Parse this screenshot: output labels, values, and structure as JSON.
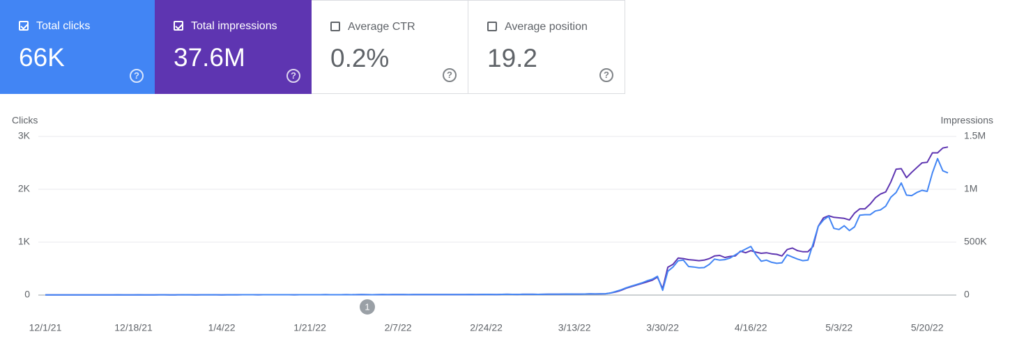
{
  "cards": [
    {
      "label": "Total clicks",
      "value": "66K",
      "checked": true,
      "color": "#4285f4"
    },
    {
      "label": "Total impressions",
      "value": "37.6M",
      "checked": true,
      "color": "#5e35b1"
    },
    {
      "label": "Average CTR",
      "value": "0.2%",
      "checked": false,
      "color": "#ffffff"
    },
    {
      "label": "Average position",
      "value": "19.2",
      "checked": false,
      "color": "#ffffff"
    }
  ],
  "chart_data": {
    "type": "line",
    "y_label": "Clicks",
    "y2_label": "Impressions",
    "grid": true,
    "annotations": [
      "1"
    ],
    "categories": [
      "12/1/21",
      null,
      null,
      null,
      null,
      null,
      null,
      null,
      null,
      null,
      null,
      null,
      null,
      null,
      null,
      null,
      null,
      "12/18/21",
      null,
      null,
      null,
      null,
      null,
      null,
      null,
      null,
      null,
      null,
      null,
      null,
      null,
      null,
      null,
      null,
      "1/4/22",
      null,
      null,
      null,
      null,
      null,
      null,
      null,
      null,
      null,
      null,
      null,
      null,
      null,
      null,
      null,
      null,
      "1/21/22",
      null,
      null,
      null,
      null,
      null,
      null,
      null,
      null,
      null,
      null,
      null,
      null,
      null,
      null,
      null,
      null,
      "2/7/22",
      null,
      null,
      null,
      null,
      null,
      null,
      null,
      null,
      null,
      null,
      null,
      null,
      null,
      null,
      null,
      null,
      "2/24/22",
      null,
      null,
      null,
      null,
      null,
      null,
      null,
      null,
      null,
      null,
      null,
      null,
      null,
      null,
      null,
      null,
      "3/13/22",
      null,
      null,
      null,
      null,
      null,
      null,
      null,
      null,
      null,
      null,
      null,
      null,
      null,
      null,
      null,
      null,
      "3/30/22",
      null,
      null,
      null,
      null,
      null,
      null,
      null,
      null,
      null,
      null,
      null,
      null,
      null,
      null,
      null,
      null,
      "4/16/22",
      null,
      null,
      null,
      null,
      null,
      null,
      null,
      null,
      null,
      null,
      null,
      null,
      null,
      null,
      null,
      null,
      "5/3/22",
      null,
      null,
      null,
      null,
      null,
      null,
      null,
      null,
      null,
      null,
      null,
      null,
      null,
      null,
      null,
      null,
      "5/20/22",
      null,
      null,
      null,
      null
    ],
    "ylim": [
      0,
      3000
    ],
    "yticks": [
      0,
      {
        "value": 1000,
        "label": "1K"
      },
      {
        "value": 2000,
        "label": "2K"
      },
      {
        "value": 3000,
        "label": "3K"
      }
    ],
    "y2lim": [
      0,
      1500000
    ],
    "y2ticks": [
      0,
      {
        "value": 500000,
        "label": "500K"
      },
      {
        "value": 1000000,
        "label": "1M"
      },
      {
        "value": 1500000,
        "label": "1.5M"
      }
    ],
    "series": [
      {
        "name": "Clicks",
        "color": "#4285f4",
        "values": [
          2,
          3,
          3,
          2,
          4,
          3,
          3,
          4,
          3,
          2,
          3,
          4,
          4,
          3,
          5,
          4,
          3,
          4,
          5,
          4,
          3,
          4,
          5,
          5,
          4,
          4,
          5,
          6,
          5,
          4,
          5,
          5,
          6,
          5,
          4,
          5,
          6,
          5,
          6,
          6,
          6,
          5,
          6,
          7,
          6,
          6,
          7,
          6,
          5,
          6,
          7,
          7,
          6,
          7,
          8,
          7,
          6,
          7,
          8,
          7,
          8,
          9,
          8,
          7,
          8,
          9,
          8,
          9,
          10,
          9,
          8,
          9,
          10,
          9,
          10,
          11,
          10,
          9,
          10,
          11,
          10,
          11,
          12,
          11,
          12,
          13,
          12,
          11,
          13,
          14,
          13,
          12,
          14,
          15,
          14,
          13,
          15,
          16,
          17,
          16,
          18,
          20,
          19,
          18,
          20,
          22,
          21,
          23,
          25,
          40,
          70,
          100,
          140,
          170,
          200,
          230,
          270,
          300,
          355,
          90,
          450,
          530,
          650,
          660,
          540,
          530,
          515,
          520,
          580,
          680,
          660,
          670,
          700,
          760,
          820,
          870,
          920,
          760,
          640,
          660,
          620,
          600,
          610,
          760,
          720,
          680,
          650,
          660,
          970,
          1300,
          1420,
          1490,
          1260,
          1240,
          1310,
          1220,
          1290,
          1510,
          1520,
          1520,
          1590,
          1610,
          1680,
          1850,
          1940,
          2120,
          1890,
          1880,
          1940,
          1980,
          1960,
          2310,
          2580,
          2350,
          2310
        ]
      },
      {
        "name": "Impressions",
        "color": "#5e35b1",
        "axis": "y2",
        "values": [
          1000,
          1500,
          1500,
          1000,
          2000,
          1500,
          1500,
          2000,
          1500,
          1000,
          1500,
          2000,
          2000,
          1500,
          2500,
          2000,
          1500,
          2000,
          2500,
          2000,
          1500,
          2000,
          2500,
          2500,
          2000,
          2000,
          2500,
          3000,
          2500,
          2000,
          2500,
          2500,
          3000,
          2500,
          2000,
          2500,
          3000,
          2500,
          3000,
          3000,
          3000,
          2500,
          3000,
          3500,
          3000,
          3000,
          3500,
          3000,
          2500,
          3000,
          3500,
          3500,
          3000,
          3500,
          4000,
          3500,
          3000,
          3500,
          4000,
          3500,
          4000,
          4500,
          4000,
          3500,
          4000,
          4500,
          4000,
          4500,
          5000,
          4500,
          4000,
          4500,
          5000,
          4500,
          5000,
          5500,
          5000,
          4500,
          5000,
          5500,
          5000,
          5500,
          6000,
          5500,
          6000,
          6500,
          6000,
          5500,
          6500,
          7000,
          6500,
          6000,
          7000,
          7500,
          7000,
          6500,
          7500,
          8000,
          8500,
          8000,
          9000,
          10000,
          9500,
          9000,
          10000,
          11000,
          10500,
          11500,
          12500,
          20000,
          30000,
          45000,
          65000,
          80000,
          95000,
          110000,
          125000,
          140000,
          170000,
          60000,
          263000,
          290000,
          350000,
          345000,
          335000,
          330000,
          325000,
          330000,
          345000,
          370000,
          375000,
          355000,
          365000,
          370000,
          415000,
          400000,
          420000,
          405000,
          395000,
          400000,
          390000,
          385000,
          370000,
          430000,
          445000,
          420000,
          410000,
          410000,
          460000,
          650000,
          730000,
          750000,
          735000,
          730000,
          725000,
          710000,
          775000,
          815000,
          815000,
          860000,
          920000,
          955000,
          975000,
          1070000,
          1190000,
          1195000,
          1110000,
          1160000,
          1205000,
          1250000,
          1255000,
          1345000,
          1345000,
          1390000,
          1400000
        ]
      }
    ]
  }
}
